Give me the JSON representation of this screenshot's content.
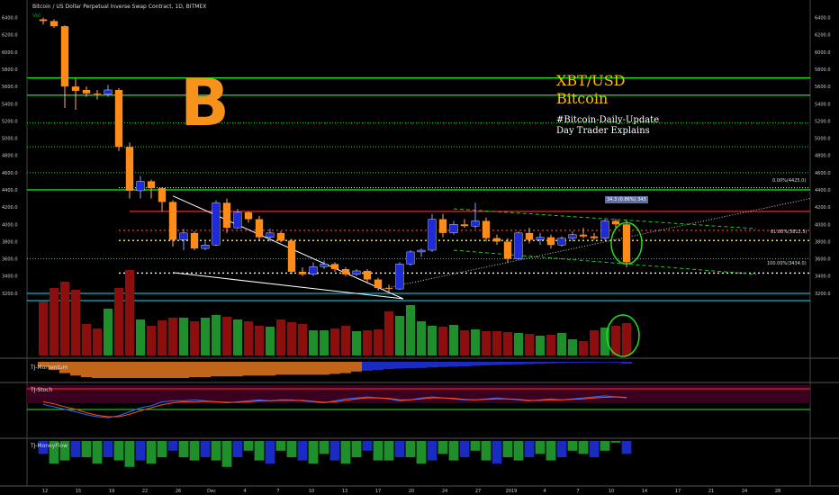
{
  "header": {
    "title": "Bitcoin / US Dollar Perpetual Inverse Swap Contract, 1D, BITMEX",
    "vol_label": "Vol"
  },
  "overlay": {
    "pair": "XBT/USD",
    "name": "Bitcoin",
    "hashtag": "#Bitcoin-Daily-Update",
    "subtitle": "Day Trader Explains",
    "logo": "B"
  },
  "change_badge": "34.3 (0.86%) 343",
  "fib_labels": {
    "top": "0.00%(4425.0)",
    "mid": "61.80%(3812.5)",
    "bottom": "100.00%(3434.0)"
  },
  "panes": {
    "momentum": "TJ-Momentum",
    "stoch": "TJ-Stoch",
    "moneyflow": "TJ-MoneyFlow"
  },
  "colors": {
    "up": "#1e2bd6",
    "down": "#ff8c1a",
    "vol_up": "#1f8f2b",
    "vol_down": "#8b0f0f",
    "support": "#00ff00",
    "cyan": "#00e5ff"
  },
  "chart_data": [
    {
      "type": "candlestick",
      "y_ticks": [
        3200,
        3400,
        3600,
        3800,
        4000,
        4200,
        4400,
        4600,
        4800,
        5000,
        5200,
        5400,
        5600,
        5800,
        6000,
        6200,
        6400
      ],
      "ylim": [
        3000,
        6500
      ],
      "x_ticks": [
        "12",
        "15",
        "19",
        "22",
        "26",
        "Dec",
        "4",
        "7",
        "10",
        "13",
        "17",
        "20",
        "24",
        "27",
        "2019",
        "4",
        "7",
        "10",
        "14",
        "17",
        "21",
        "24",
        "28"
      ],
      "candles": [
        {
          "o": 6380,
          "h": 6400,
          "l": 6320,
          "c": 6360
        },
        {
          "o": 6360,
          "h": 6380,
          "l": 6280,
          "c": 6300
        },
        {
          "o": 6300,
          "h": 6310,
          "l": 5350,
          "c": 5600
        },
        {
          "o": 5600,
          "h": 5700,
          "l": 5330,
          "c": 5550
        },
        {
          "o": 5560,
          "h": 5600,
          "l": 5480,
          "c": 5520
        },
        {
          "o": 5520,
          "h": 5560,
          "l": 5450,
          "c": 5510
        },
        {
          "o": 5510,
          "h": 5620,
          "l": 5480,
          "c": 5560
        },
        {
          "o": 5560,
          "h": 5580,
          "l": 4850,
          "c": 4900
        },
        {
          "o": 4900,
          "h": 4950,
          "l": 4300,
          "c": 4390
        },
        {
          "o": 4390,
          "h": 4560,
          "l": 4300,
          "c": 4500
        },
        {
          "o": 4500,
          "h": 4520,
          "l": 4300,
          "c": 4420
        },
        {
          "o": 4420,
          "h": 4430,
          "l": 4150,
          "c": 4260
        },
        {
          "o": 4260,
          "h": 4280,
          "l": 3740,
          "c": 3820
        },
        {
          "o": 3820,
          "h": 3950,
          "l": 3700,
          "c": 3900
        },
        {
          "o": 3900,
          "h": 3920,
          "l": 3700,
          "c": 3720
        },
        {
          "o": 3720,
          "h": 3800,
          "l": 3700,
          "c": 3760
        },
        {
          "o": 3760,
          "h": 4280,
          "l": 3750,
          "c": 4250
        },
        {
          "o": 4250,
          "h": 4300,
          "l": 3900,
          "c": 3960
        },
        {
          "o": 3960,
          "h": 4180,
          "l": 3950,
          "c": 4140
        },
        {
          "o": 4140,
          "h": 4150,
          "l": 4020,
          "c": 4060
        },
        {
          "o": 4060,
          "h": 4100,
          "l": 3820,
          "c": 3850
        },
        {
          "o": 3850,
          "h": 3950,
          "l": 3800,
          "c": 3900
        },
        {
          "o": 3900,
          "h": 3920,
          "l": 3790,
          "c": 3810
        },
        {
          "o": 3810,
          "h": 3830,
          "l": 3420,
          "c": 3450
        },
        {
          "o": 3450,
          "h": 3500,
          "l": 3400,
          "c": 3420
        },
        {
          "o": 3420,
          "h": 3560,
          "l": 3400,
          "c": 3510
        },
        {
          "o": 3510,
          "h": 3580,
          "l": 3480,
          "c": 3540
        },
        {
          "o": 3540,
          "h": 3560,
          "l": 3450,
          "c": 3480
        },
        {
          "o": 3480,
          "h": 3500,
          "l": 3400,
          "c": 3420
        },
        {
          "o": 3420,
          "h": 3480,
          "l": 3400,
          "c": 3460
        },
        {
          "o": 3460,
          "h": 3480,
          "l": 3330,
          "c": 3360
        },
        {
          "o": 3360,
          "h": 3380,
          "l": 3240,
          "c": 3260
        },
        {
          "o": 3260,
          "h": 3300,
          "l": 3220,
          "c": 3250
        },
        {
          "o": 3250,
          "h": 3560,
          "l": 3240,
          "c": 3540
        },
        {
          "o": 3540,
          "h": 3700,
          "l": 3520,
          "c": 3680
        },
        {
          "o": 3680,
          "h": 3720,
          "l": 3620,
          "c": 3700
        },
        {
          "o": 3700,
          "h": 4120,
          "l": 3680,
          "c": 4060
        },
        {
          "o": 4060,
          "h": 4120,
          "l": 3850,
          "c": 3900
        },
        {
          "o": 3900,
          "h": 4040,
          "l": 3880,
          "c": 4000
        },
        {
          "o": 4000,
          "h": 4060,
          "l": 3960,
          "c": 3980
        },
        {
          "o": 3980,
          "h": 4250,
          "l": 3950,
          "c": 4040
        },
        {
          "o": 4040,
          "h": 4080,
          "l": 3800,
          "c": 3840
        },
        {
          "o": 3840,
          "h": 3880,
          "l": 3760,
          "c": 3800
        },
        {
          "o": 3800,
          "h": 3840,
          "l": 3550,
          "c": 3600
        },
        {
          "o": 3600,
          "h": 3920,
          "l": 3580,
          "c": 3900
        },
        {
          "o": 3900,
          "h": 3960,
          "l": 3780,
          "c": 3820
        },
        {
          "o": 3820,
          "h": 3900,
          "l": 3760,
          "c": 3850
        },
        {
          "o": 3850,
          "h": 3880,
          "l": 3720,
          "c": 3760
        },
        {
          "o": 3760,
          "h": 3860,
          "l": 3740,
          "c": 3840
        },
        {
          "o": 3840,
          "h": 3920,
          "l": 3800,
          "c": 3880
        },
        {
          "o": 3880,
          "h": 3960,
          "l": 3840,
          "c": 3860
        },
        {
          "o": 3860,
          "h": 3900,
          "l": 3820,
          "c": 3840
        },
        {
          "o": 3840,
          "h": 4060,
          "l": 3820,
          "c": 4040
        },
        {
          "o": 4040,
          "h": 4060,
          "l": 3960,
          "c": 4000
        },
        {
          "o": 4000,
          "h": 4050,
          "l": 3500,
          "c": 3560
        }
      ],
      "volume": [
        60,
        75,
        82,
        73,
        35,
        30,
        52,
        75,
        95,
        40,
        33,
        39,
        42,
        42,
        38,
        42,
        45,
        43,
        40,
        38,
        33,
        32,
        40,
        37,
        35,
        28,
        28,
        30,
        33,
        27,
        28,
        29,
        49,
        44,
        56,
        38,
        33,
        32,
        34,
        28,
        29,
        27,
        27,
        26,
        25,
        24,
        22,
        23,
        25,
        18,
        16,
        28,
        31,
        33,
        36
      ],
      "moneyflow": [
        -0.08,
        -0.14,
        -0.12,
        -0.1,
        -0.1,
        -0.14,
        -0.1,
        -0.12,
        -0.16,
        -0.12,
        -0.14,
        -0.1,
        -0.06,
        -0.1,
        -0.12,
        -0.1,
        -0.12,
        -0.16,
        -0.1,
        -0.06,
        -0.12,
        -0.14,
        -0.06,
        -0.1,
        -0.12,
        -0.14,
        -0.08,
        -0.12,
        -0.14,
        -0.1,
        -0.06,
        -0.12,
        -0.12,
        -0.1,
        -0.1,
        -0.14,
        -0.12,
        -0.08,
        -0.12,
        -0.1,
        -0.06,
        -0.12,
        -0.14,
        -0.1,
        -0.12,
        -0.1,
        -0.08,
        -0.12,
        -0.1,
        -0.06,
        -0.08,
        -0.1,
        -0.06,
        0.01,
        -0.08
      ],
      "stoch_k": [
        65,
        60,
        55,
        50,
        44,
        40,
        38,
        42,
        50,
        58,
        62,
        70,
        72,
        72,
        74,
        72,
        70,
        68,
        70,
        72,
        74,
        72,
        74,
        74,
        72,
        70,
        68,
        72,
        76,
        78,
        80,
        78,
        76,
        72,
        74,
        78,
        80,
        78,
        76,
        74,
        74,
        76,
        78,
        76,
        74,
        72,
        74,
        76,
        74,
        76,
        78,
        80,
        82,
        80,
        78
      ],
      "stoch_d": [
        70,
        66,
        60,
        55,
        48,
        43,
        40,
        40,
        45,
        52,
        58,
        64,
        68,
        70,
        70,
        71,
        70,
        69,
        69,
        70,
        72,
        72,
        73,
        73,
        73,
        71,
        69,
        70,
        73,
        76,
        78,
        78,
        77,
        74,
        74,
        76,
        78,
        78,
        77,
        75,
        74,
        75,
        76,
        76,
        75,
        73,
        73,
        74,
        74,
        75,
        76,
        78,
        79,
        80,
        79
      ],
      "momentum": [
        -0.3,
        -0.5,
        -0.7,
        -0.85,
        -0.95,
        -1.0,
        -1.0,
        -1.0,
        -1.0,
        -1.0,
        -1.0,
        -1.0,
        -1.0,
        -1.0,
        -0.95,
        -0.95,
        -0.9,
        -0.9,
        -0.9,
        -0.85,
        -0.85,
        -0.85,
        -0.8,
        -0.8,
        -0.8,
        -0.8,
        -0.8,
        -0.75,
        -0.7,
        -0.6,
        -0.55,
        -0.5,
        -0.45,
        -0.42,
        -0.4,
        -0.38,
        -0.35,
        -0.32,
        -0.3,
        -0.28,
        -0.25,
        -0.22,
        -0.2,
        -0.18,
        -0.16,
        -0.14,
        -0.12,
        -0.1,
        -0.08,
        -0.07,
        -0.06,
        -0.05,
        -0.04,
        -0.05,
        -0.12
      ],
      "levels": {
        "green_solid": [
          5700,
          5500,
          4400
        ],
        "green_dotted": [
          5180,
          4900,
          4600
        ],
        "red_solid": 4150,
        "fib_top": 4425,
        "fib_mid": 3812.5,
        "fib_bottom": 3434,
        "cyan": 3600,
        "red_dotted": 3930
      }
    }
  ]
}
